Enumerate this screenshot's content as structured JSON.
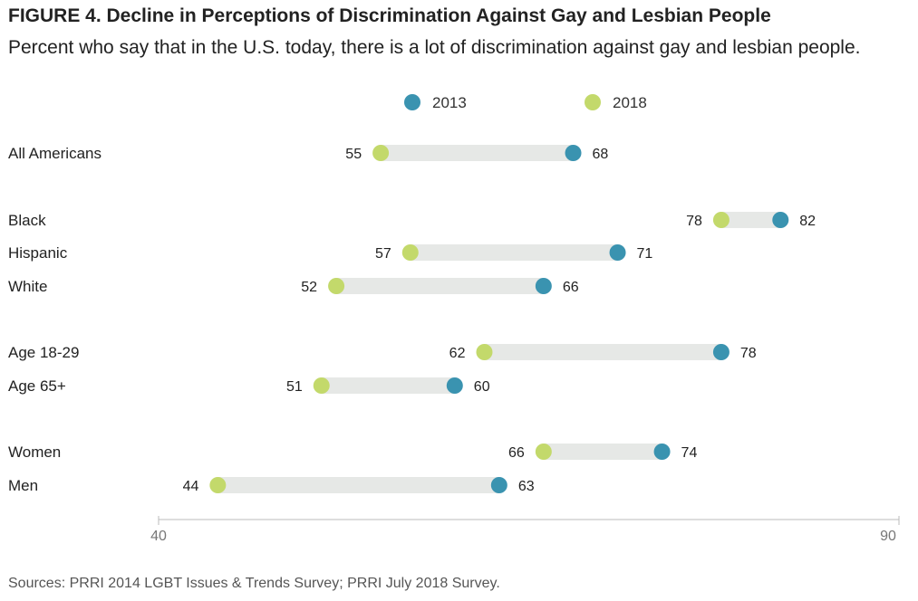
{
  "title": "FIGURE 4. Decline in Perceptions of Discrimination Against Gay and Lesbian People",
  "subtitle": "Percent who say that in the U.S. today, there is a lot of discrimination against gay and lesbian people.",
  "source": "Sources: PRRI 2014 LGBT Issues & Trends Survey; PRRI July 2018 Survey.",
  "colors": {
    "series_2013": "#3a93b0",
    "series_2018": "#c3d96b",
    "bar": "#e6e8e6",
    "axis": "#bbbbbb",
    "axis_text": "#777777"
  },
  "chart_data": {
    "type": "dumbbell",
    "series": [
      {
        "name": "2013",
        "color": "#3a93b0"
      },
      {
        "name": "2018",
        "color": "#c3d96b"
      }
    ],
    "legend_position": "top",
    "xlim": [
      40,
      90
    ],
    "x_ticks": [
      "40",
      "90"
    ],
    "grid": false,
    "rows": [
      {
        "label": "All Americans",
        "v2013": 68,
        "v2018": 55
      },
      {
        "label": "Black",
        "v2013": 82,
        "v2018": 78
      },
      {
        "label": "Hispanic",
        "v2013": 71,
        "v2018": 57
      },
      {
        "label": "White",
        "v2013": 66,
        "v2018": 52
      },
      {
        "label": "Age 18-29",
        "v2013": 78,
        "v2018": 62
      },
      {
        "label": "Age 65+",
        "v2013": 60,
        "v2018": 51
      },
      {
        "label": "Women",
        "v2013": 74,
        "v2018": 66
      },
      {
        "label": "Men",
        "v2013": 63,
        "v2018": 44
      }
    ]
  }
}
